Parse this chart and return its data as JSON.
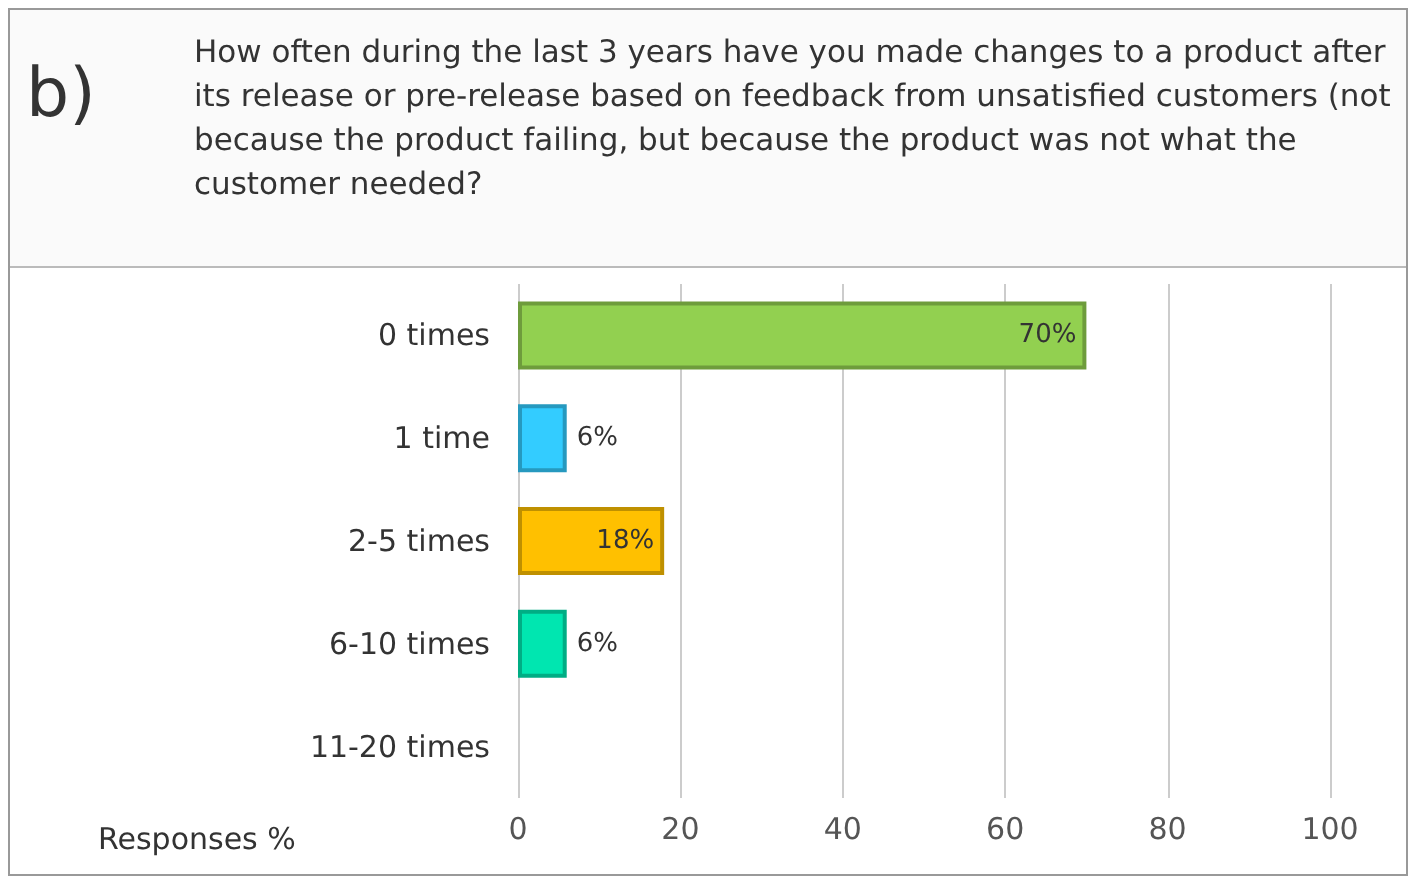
{
  "chart_data": {
    "type": "bar",
    "orientation": "horizontal",
    "title": "How often during the last 3 years have you made changes to a product after its release or pre-release based on feedback from unsatisfied customers (not because the product failing, but because the product was not what the customer needed?",
    "annotations": [
      "b)",
      "Responses %"
    ],
    "categories": [
      "0 times",
      "1 time",
      "2-5 times",
      "6-10 times",
      "11-20 times"
    ],
    "values": [
      70,
      6,
      18,
      6,
      null
    ],
    "colors": [
      "#92d050",
      "#33ccff",
      "#ffc000",
      "#00e6b0",
      null
    ],
    "value_labels": [
      "70%",
      "6%",
      "18%",
      "6%",
      null
    ],
    "xlim": [
      0,
      100
    ],
    "xticks": [
      0,
      20,
      40,
      60,
      80,
      100
    ],
    "grid": "x"
  }
}
